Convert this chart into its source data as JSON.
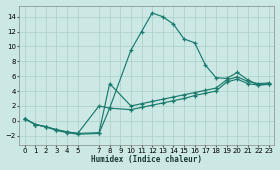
{
  "xlabel": "Humidex (Indice chaleur)",
  "bg_color": "#cce8e4",
  "grid_color": "#aacfca",
  "line_color": "#1a7a6e",
  "xlim": [
    -0.5,
    23.5
  ],
  "ylim": [
    -3.2,
    15.5
  ],
  "xticks": [
    0,
    1,
    2,
    3,
    4,
    5,
    7,
    8,
    9,
    10,
    11,
    12,
    13,
    14,
    15,
    16,
    17,
    18,
    19,
    20,
    21,
    22,
    23
  ],
  "yticks": [
    -2,
    0,
    2,
    4,
    6,
    8,
    10,
    12,
    14
  ],
  "s1_x": [
    0,
    1,
    2,
    3,
    4,
    5,
    7,
    8,
    10,
    11,
    12,
    13,
    14,
    15,
    16,
    17,
    18,
    19,
    20,
    21,
    22,
    23
  ],
  "s1_y": [
    0.3,
    -0.5,
    -0.8,
    -1.2,
    -1.5,
    -1.7,
    2.0,
    1.7,
    9.5,
    12.0,
    14.5,
    14.0,
    13.0,
    11.0,
    10.5,
    7.5,
    5.8,
    5.7,
    6.5,
    5.5,
    4.8,
    5.0
  ],
  "s2_x": [
    0,
    1,
    2,
    3,
    4,
    5,
    7,
    8,
    10,
    11,
    12,
    13,
    14,
    15,
    16,
    17,
    18,
    19,
    20,
    21,
    22,
    23
  ],
  "s2_y": [
    0.3,
    -0.5,
    -0.8,
    -1.2,
    -1.5,
    -1.7,
    -1.6,
    5.0,
    2.0,
    2.3,
    2.6,
    2.9,
    3.2,
    3.5,
    3.8,
    4.1,
    4.4,
    5.5,
    5.9,
    5.3,
    5.0,
    5.1
  ],
  "s3_x": [
    0,
    1,
    2,
    3,
    4,
    5,
    7,
    8,
    10,
    11,
    12,
    13,
    14,
    15,
    16,
    17,
    18,
    19,
    20,
    21,
    22,
    23
  ],
  "s3_y": [
    0.3,
    -0.5,
    -0.8,
    -1.3,
    -1.6,
    -1.8,
    -1.7,
    1.7,
    1.5,
    1.8,
    2.1,
    2.4,
    2.7,
    3.0,
    3.4,
    3.7,
    4.0,
    5.2,
    5.6,
    5.0,
    4.8,
    4.9
  ]
}
